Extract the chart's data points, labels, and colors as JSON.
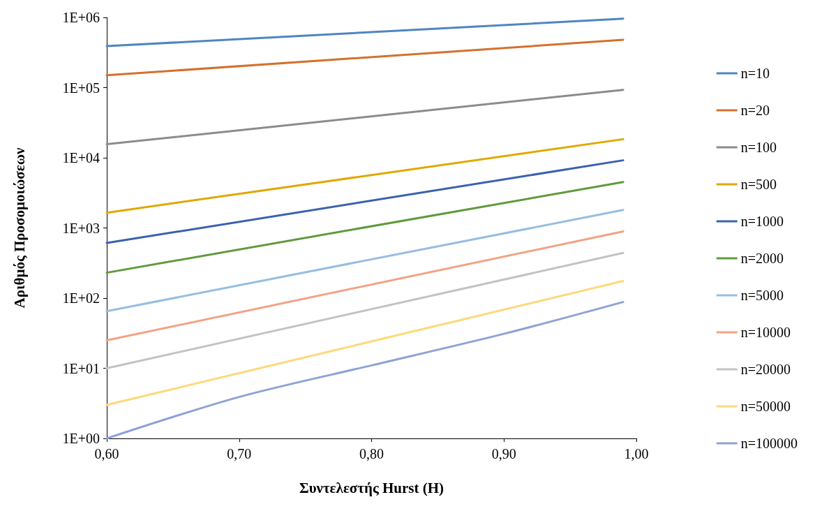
{
  "chart_data": {
    "type": "line",
    "xlabel": "Συντελεστής Hurst (H)",
    "ylabel": "Αριθμός Προσομοιώσεων",
    "x": [
      0.6,
      0.99
    ],
    "log": "y",
    "grid": false,
    "legend": "right",
    "marker": "none",
    "line_style": "solid",
    "xlim": [
      0.6,
      1.0
    ],
    "xticks": [
      {
        "value": 0.6,
        "label": "0,60"
      },
      {
        "value": 0.7,
        "label": "0,70"
      },
      {
        "value": 0.8,
        "label": "0,80"
      },
      {
        "value": 0.9,
        "label": "0,90"
      },
      {
        "value": 1.0,
        "label": "1,00"
      }
    ],
    "ylim": [
      1,
      1000000
    ],
    "yticks": [
      {
        "value": 1,
        "label": "1E+00"
      },
      {
        "value": 10,
        "label": "1E+01"
      },
      {
        "value": 100,
        "label": "1E+02"
      },
      {
        "value": 1000,
        "label": "1E+03"
      },
      {
        "value": 10000,
        "label": "1E+04"
      },
      {
        "value": 100000,
        "label": "1E+05"
      },
      {
        "value": 1000000,
        "label": "1E+06"
      }
    ],
    "series": [
      {
        "name": "n=10",
        "color": "#4f86c0",
        "values": [
          390000,
          960000
        ]
      },
      {
        "name": "n=20",
        "color": "#d4712d",
        "values": [
          150000,
          480000
        ]
      },
      {
        "name": "n=100",
        "color": "#8c8c8c",
        "values": [
          15600,
          93000
        ]
      },
      {
        "name": "n=500",
        "color": "#e0a800",
        "values": [
          1650,
          18400
        ]
      },
      {
        "name": "n=1000",
        "color": "#3a62ad",
        "values": [
          610,
          9200
        ]
      },
      {
        "name": "n=2000",
        "color": "#5f9a3d",
        "values": [
          230,
          4500
        ]
      },
      {
        "name": "n=5000",
        "color": "#97bde2",
        "values": [
          65,
          1800
        ]
      },
      {
        "name": "n=10000",
        "color": "#f2a283",
        "values": [
          25,
          890
        ]
      },
      {
        "name": "n=20000",
        "color": "#c3c3c3",
        "values": [
          10,
          440
        ]
      },
      {
        "name": "n=50000",
        "color": "#fed87a",
        "values": [
          3,
          175
        ]
      },
      {
        "name": "n=100000",
        "color": "#8ea2d4",
        "x": [
          0.6,
          0.7,
          0.8,
          0.9,
          0.99
        ],
        "values": [
          1,
          3.9,
          11,
          31,
          88
        ]
      }
    ]
  }
}
